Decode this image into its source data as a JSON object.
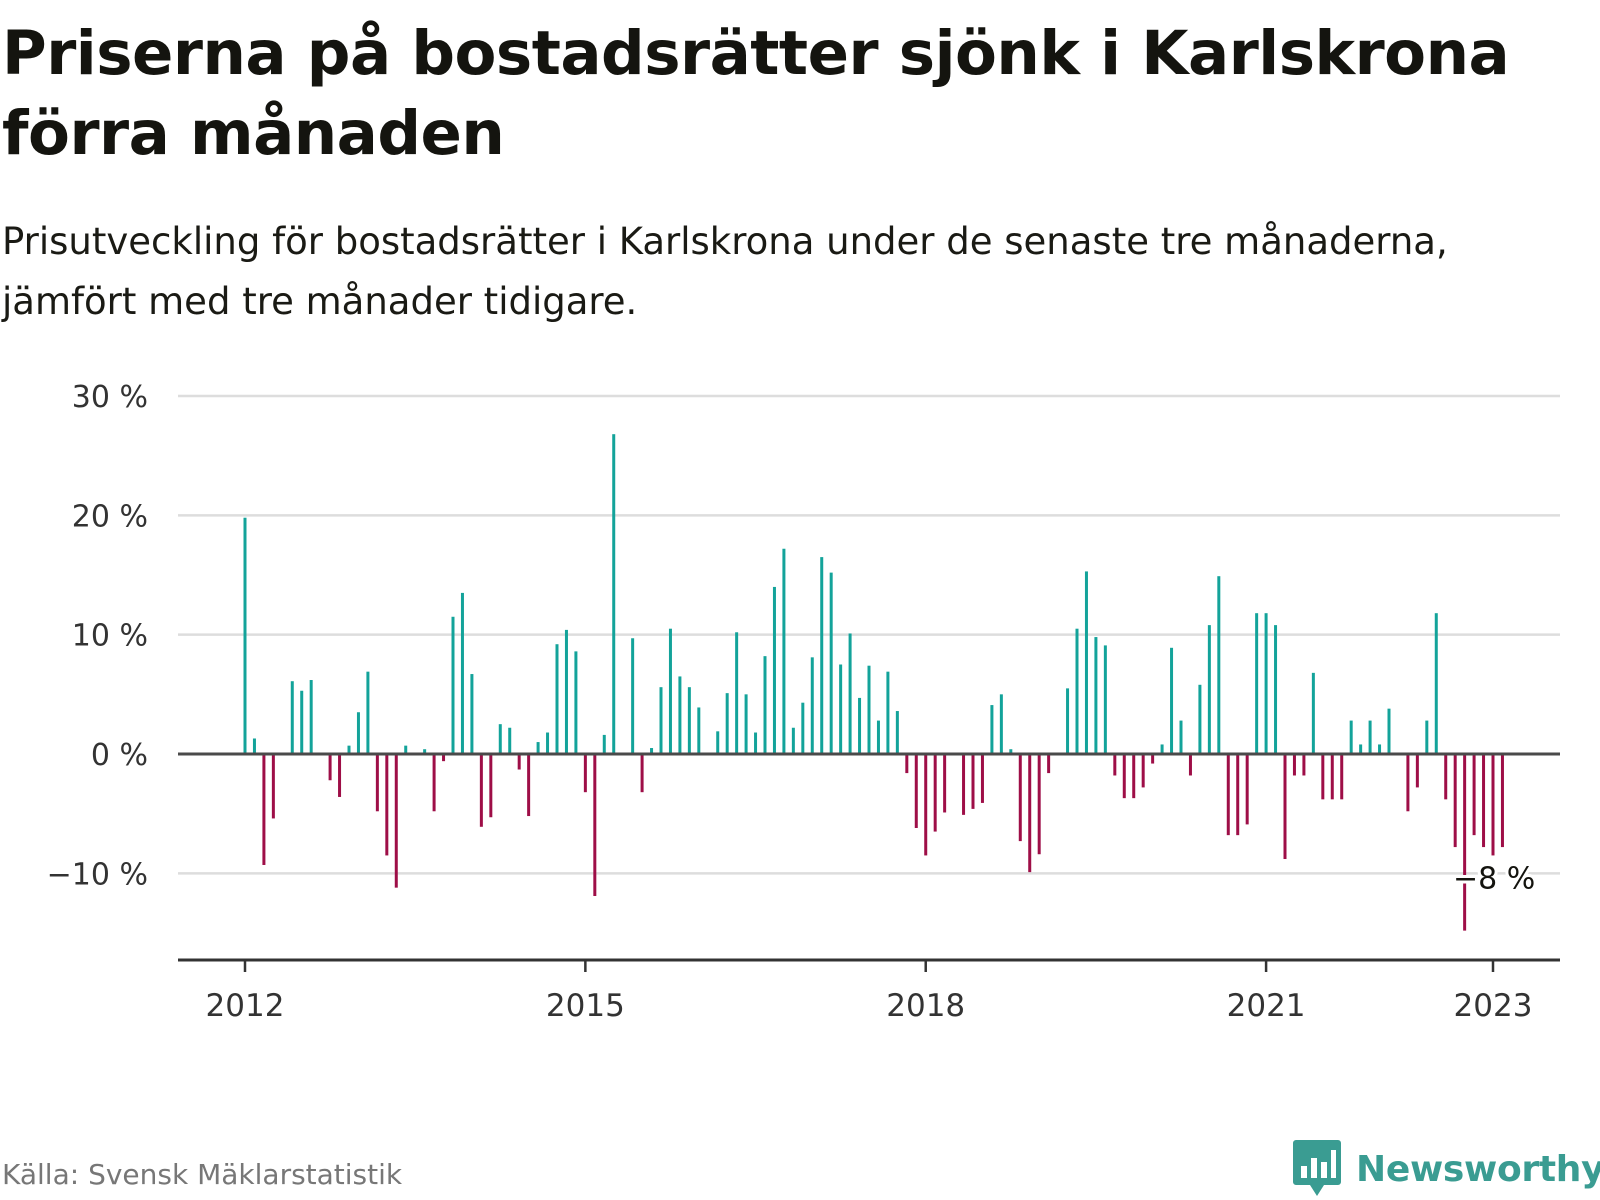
{
  "header": {
    "title": "Priserna på bostadsrätter sjönk i Karlskrona förra månaden",
    "subtitle": "Prisutveckling för bostadsrätter i Karlskrona under de senaste tre månaderna, jämfört med tre månader tidigare."
  },
  "footer": {
    "source": "Källa: Svensk Mäklarstatistik",
    "brand": "Newsworthy"
  },
  "colors": {
    "positive": "#13a39a",
    "negative": "#9e0e47",
    "grid": "#dddddd",
    "zero_line": "#4a4a4a",
    "axis": "#333333",
    "brand": "#3a9c92"
  },
  "chart_data": {
    "type": "bar",
    "title": "Priserna på bostadsrätter sjönk i Karlskrona förra månaden",
    "subtitle": "Prisutveckling för bostadsrätter i Karlskrona under de senaste tre månaderna, jämfört med tre månader tidigare.",
    "unit": "%",
    "ylim": [
      -17,
      30
    ],
    "y_ticks": [
      30,
      20,
      10,
      0,
      -10
    ],
    "y_tick_labels": [
      "30 %",
      "20 %",
      "10 %",
      "0 %",
      "−10 %"
    ],
    "x_ticks": [
      {
        "date": "2012-01",
        "label": "2012"
      },
      {
        "date": "2015-01",
        "label": "2015"
      },
      {
        "date": "2018-01",
        "label": "2018"
      },
      {
        "date": "2021-01",
        "label": "2021"
      },
      {
        "date": "2023-01",
        "label": "2023"
      }
    ],
    "grid": true,
    "annotation": {
      "date": "2023-01",
      "label": "−8 %"
    },
    "series": [
      {
        "values": [
          {
            "date": "2012-01",
            "value": 19.8
          },
          {
            "date": "2012-02",
            "value": 1.3
          },
          {
            "date": "2012-03",
            "value": -9.3
          },
          {
            "date": "2012-04",
            "value": -5.4
          },
          {
            "date": "2012-06",
            "value": 6.1
          },
          {
            "date": "2012-07",
            "value": 5.3
          },
          {
            "date": "2012-08",
            "value": 6.2
          },
          {
            "date": "2012-10",
            "value": -2.2
          },
          {
            "date": "2012-11",
            "value": -3.6
          },
          {
            "date": "2012-12",
            "value": 0.7
          },
          {
            "date": "2013-01",
            "value": 3.5
          },
          {
            "date": "2013-02",
            "value": 6.9
          },
          {
            "date": "2013-03",
            "value": -4.8
          },
          {
            "date": "2013-04",
            "value": -8.5
          },
          {
            "date": "2013-05",
            "value": -11.2
          },
          {
            "date": "2013-06",
            "value": 0.7
          },
          {
            "date": "2013-08",
            "value": 0.4
          },
          {
            "date": "2013-09",
            "value": -4.8
          },
          {
            "date": "2013-10",
            "value": -0.6
          },
          {
            "date": "2013-11",
            "value": 11.5
          },
          {
            "date": "2013-12",
            "value": 13.5
          },
          {
            "date": "2014-01",
            "value": 6.7
          },
          {
            "date": "2014-02",
            "value": -6.1
          },
          {
            "date": "2014-03",
            "value": -5.3
          },
          {
            "date": "2014-04",
            "value": 2.5
          },
          {
            "date": "2014-05",
            "value": 2.2
          },
          {
            "date": "2014-06",
            "value": -1.3
          },
          {
            "date": "2014-07",
            "value": -5.2
          },
          {
            "date": "2014-08",
            "value": 1.0
          },
          {
            "date": "2014-09",
            "value": 1.8
          },
          {
            "date": "2014-10",
            "value": 9.2
          },
          {
            "date": "2014-11",
            "value": 10.4
          },
          {
            "date": "2014-12",
            "value": 8.6
          },
          {
            "date": "2015-01",
            "value": -3.2
          },
          {
            "date": "2015-02",
            "value": -11.9
          },
          {
            "date": "2015-03",
            "value": 1.6
          },
          {
            "date": "2015-04",
            "value": 26.8
          },
          {
            "date": "2015-06",
            "value": 9.7
          },
          {
            "date": "2015-07",
            "value": -3.2
          },
          {
            "date": "2015-08",
            "value": 0.5
          },
          {
            "date": "2015-09",
            "value": 5.6
          },
          {
            "date": "2015-10",
            "value": 10.5
          },
          {
            "date": "2015-11",
            "value": 6.5
          },
          {
            "date": "2015-12",
            "value": 5.6
          },
          {
            "date": "2016-01",
            "value": 3.9
          },
          {
            "date": "2016-03",
            "value": 1.9
          },
          {
            "date": "2016-04",
            "value": 5.1
          },
          {
            "date": "2016-05",
            "value": 10.2
          },
          {
            "date": "2016-06",
            "value": 5.0
          },
          {
            "date": "2016-07",
            "value": 1.8
          },
          {
            "date": "2016-08",
            "value": 8.2
          },
          {
            "date": "2016-09",
            "value": 14.0
          },
          {
            "date": "2016-10",
            "value": 17.2
          },
          {
            "date": "2016-11",
            "value": 2.2
          },
          {
            "date": "2016-12",
            "value": 4.3
          },
          {
            "date": "2017-01",
            "value": 8.1
          },
          {
            "date": "2017-02",
            "value": 16.5
          },
          {
            "date": "2017-03",
            "value": 15.2
          },
          {
            "date": "2017-04",
            "value": 7.5
          },
          {
            "date": "2017-05",
            "value": 10.1
          },
          {
            "date": "2017-06",
            "value": 4.7
          },
          {
            "date": "2017-07",
            "value": 7.4
          },
          {
            "date": "2017-08",
            "value": 2.8
          },
          {
            "date": "2017-09",
            "value": 6.9
          },
          {
            "date": "2017-10",
            "value": 3.6
          },
          {
            "date": "2017-11",
            "value": -1.6
          },
          {
            "date": "2017-12",
            "value": -6.2
          },
          {
            "date": "2018-01",
            "value": -8.5
          },
          {
            "date": "2018-02",
            "value": -6.5
          },
          {
            "date": "2018-03",
            "value": -4.9
          },
          {
            "date": "2018-05",
            "value": -5.1
          },
          {
            "date": "2018-06",
            "value": -4.6
          },
          {
            "date": "2018-07",
            "value": -4.1
          },
          {
            "date": "2018-08",
            "value": 4.1
          },
          {
            "date": "2018-09",
            "value": 5.0
          },
          {
            "date": "2018-10",
            "value": 0.4
          },
          {
            "date": "2018-11",
            "value": -7.3
          },
          {
            "date": "2018-12",
            "value": -9.9
          },
          {
            "date": "2019-01",
            "value": -8.4
          },
          {
            "date": "2019-02",
            "value": -1.6
          },
          {
            "date": "2019-04",
            "value": 5.5
          },
          {
            "date": "2019-05",
            "value": 10.5
          },
          {
            "date": "2019-06",
            "value": 15.3
          },
          {
            "date": "2019-07",
            "value": 9.8
          },
          {
            "date": "2019-08",
            "value": 9.1
          },
          {
            "date": "2019-09",
            "value": -1.8
          },
          {
            "date": "2019-10",
            "value": -3.7
          },
          {
            "date": "2019-11",
            "value": -3.7
          },
          {
            "date": "2019-12",
            "value": -2.8
          },
          {
            "date": "2020-01",
            "value": -0.8
          },
          {
            "date": "2020-02",
            "value": 0.8
          },
          {
            "date": "2020-03",
            "value": 8.9
          },
          {
            "date": "2020-04",
            "value": 2.8
          },
          {
            "date": "2020-05",
            "value": -1.8
          },
          {
            "date": "2020-06",
            "value": 5.8
          },
          {
            "date": "2020-07",
            "value": 10.8
          },
          {
            "date": "2020-08",
            "value": 14.9
          },
          {
            "date": "2020-09",
            "value": -6.8
          },
          {
            "date": "2020-10",
            "value": -6.8
          },
          {
            "date": "2020-11",
            "value": -5.9
          },
          {
            "date": "2020-12",
            "value": 11.8
          },
          {
            "date": "2021-01",
            "value": 11.8
          },
          {
            "date": "2021-02",
            "value": 10.8
          },
          {
            "date": "2021-03",
            "value": -8.8
          },
          {
            "date": "2021-04",
            "value": -1.8
          },
          {
            "date": "2021-05",
            "value": -1.8
          },
          {
            "date": "2021-06",
            "value": 6.8
          },
          {
            "date": "2021-07",
            "value": -3.8
          },
          {
            "date": "2021-08",
            "value": -3.8
          },
          {
            "date": "2021-09",
            "value": -3.8
          },
          {
            "date": "2021-10",
            "value": 2.8
          },
          {
            "date": "2021-11",
            "value": 0.8
          },
          {
            "date": "2021-12",
            "value": 2.8
          },
          {
            "date": "2022-01",
            "value": 0.8
          },
          {
            "date": "2022-02",
            "value": 3.8
          },
          {
            "date": "2022-04",
            "value": -4.8
          },
          {
            "date": "2022-05",
            "value": -2.8
          },
          {
            "date": "2022-06",
            "value": 2.8
          },
          {
            "date": "2022-07",
            "value": 11.8
          },
          {
            "date": "2022-08",
            "value": -3.8
          },
          {
            "date": "2022-09",
            "value": -7.8
          },
          {
            "date": "2022-10",
            "value": -14.8
          },
          {
            "date": "2022-11",
            "value": -6.8
          },
          {
            "date": "2022-12",
            "value": -7.8
          },
          {
            "date": "2023-01",
            "value": -8.5
          },
          {
            "date": "2023-02",
            "value": -7.8
          }
        ]
      }
    ]
  }
}
